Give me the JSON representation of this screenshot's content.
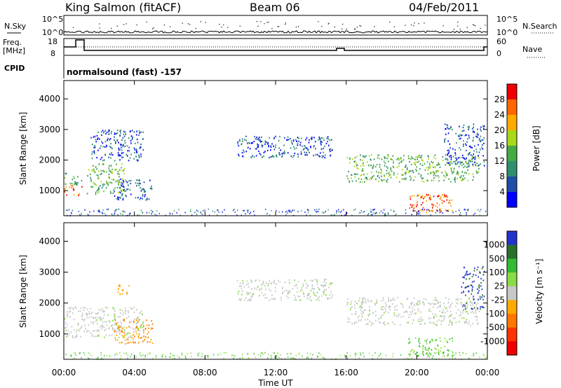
{
  "header": {
    "station": "King Salmon (fitACF)",
    "beam": "Beam 06",
    "date": "04/Feb/2011"
  },
  "top_panels": {
    "nsky_label": "N.Sky",
    "nsky_ticks": [
      "10^5",
      "10^0"
    ],
    "nsearch_label": "N.Search",
    "nsearch_ticks": [
      "10^5",
      "10^0"
    ],
    "freq_label_1": "Freq.",
    "freq_label_2": "[MHz]",
    "freq_ticks": [
      "18",
      "8"
    ],
    "nave_label": "Nave",
    "nave_ticks": [
      "60",
      "0"
    ],
    "cpid_label": "CPID",
    "cpid_value": "normalsound (fast) -157"
  },
  "colors": {
    "power_scale": [
      "#0000ff",
      "#1f4fa8",
      "#2f8f6f",
      "#44aa44",
      "#a8d818",
      "#ffaa00",
      "#ff6600",
      "#ee0000"
    ],
    "velocity_scale": [
      "#2233cc",
      "#2a6f2a",
      "#33bb33",
      "#88dd44",
      "#c8c8c8",
      "#ffaa00",
      "#ff7700",
      "#ff3300",
      "#ee0000"
    ]
  },
  "chart_data": [
    {
      "type": "heatmap",
      "panel": "power",
      "ylabel": "Slant Range [km]",
      "ylim": [
        180,
        4600
      ],
      "yticks": [
        "1000",
        "2000",
        "3000",
        "4000"
      ],
      "xticks": [
        "00:00",
        "04:00",
        "08:00",
        "12:00",
        "16:00",
        "20:00",
        "00:00"
      ],
      "colorbar_label": "Power [dB]",
      "colorbar_ticks": [
        "4",
        "8",
        "12",
        "16",
        "20",
        "24",
        "28"
      ],
      "regions": [
        {
          "t": [
            0.0,
            1.0
          ],
          "r": [
            850,
            1200
          ],
          "val": "high"
        },
        {
          "t": [
            0.0,
            1.0
          ],
          "r": [
            1200,
            1600
          ],
          "val": "mid"
        },
        {
          "t": [
            1.3,
            3.5
          ],
          "r": [
            900,
            1900
          ],
          "val": "mid"
        },
        {
          "t": [
            2.8,
            5.0
          ],
          "r": [
            700,
            1400
          ],
          "val": "low"
        },
        {
          "t": [
            1.5,
            4.5
          ],
          "r": [
            2000,
            3000
          ],
          "val": "low"
        },
        {
          "t": [
            9.8,
            15.2
          ],
          "r": [
            2100,
            2800
          ],
          "val": "low"
        },
        {
          "t": [
            16.0,
            23.5
          ],
          "r": [
            1300,
            2200
          ],
          "val": "mid"
        },
        {
          "t": [
            19.5,
            22.0
          ],
          "r": [
            300,
            900
          ],
          "val": "high"
        },
        {
          "t": [
            21.5,
            23.8
          ],
          "r": [
            1800,
            3200
          ],
          "val": "low"
        }
      ]
    },
    {
      "type": "heatmap",
      "panel": "velocity",
      "ylabel": "Slant Range [km]",
      "ylim": [
        180,
        4600
      ],
      "yticks": [
        "1000",
        "2000",
        "3000",
        "4000"
      ],
      "xticks": [
        "00:00",
        "04:00",
        "08:00",
        "12:00",
        "16:00",
        "20:00",
        "00:00"
      ],
      "xlabel": "Time UT",
      "colorbar_label": "Velocity [m s⁻¹]",
      "colorbar_ticks": [
        "1000",
        "500",
        "100",
        "25",
        "-25",
        "-100",
        "-500",
        "-1000"
      ],
      "regions": [
        {
          "t": [
            0.0,
            4.5
          ],
          "r": [
            900,
            1900
          ],
          "val": "gray"
        },
        {
          "t": [
            2.8,
            5.0
          ],
          "r": [
            700,
            1500
          ],
          "val": "orange"
        },
        {
          "t": [
            3.0,
            3.8
          ],
          "r": [
            2300,
            2600
          ],
          "val": "orange"
        },
        {
          "t": [
            9.8,
            15.2
          ],
          "r": [
            2100,
            2800
          ],
          "val": "gray"
        },
        {
          "t": [
            16.0,
            23.5
          ],
          "r": [
            1300,
            2200
          ],
          "val": "gray"
        },
        {
          "t": [
            19.5,
            22.0
          ],
          "r": [
            300,
            900
          ],
          "val": "green"
        },
        {
          "t": [
            22.5,
            23.8
          ],
          "r": [
            1800,
            3200
          ],
          "val": "blue"
        }
      ]
    }
  ]
}
